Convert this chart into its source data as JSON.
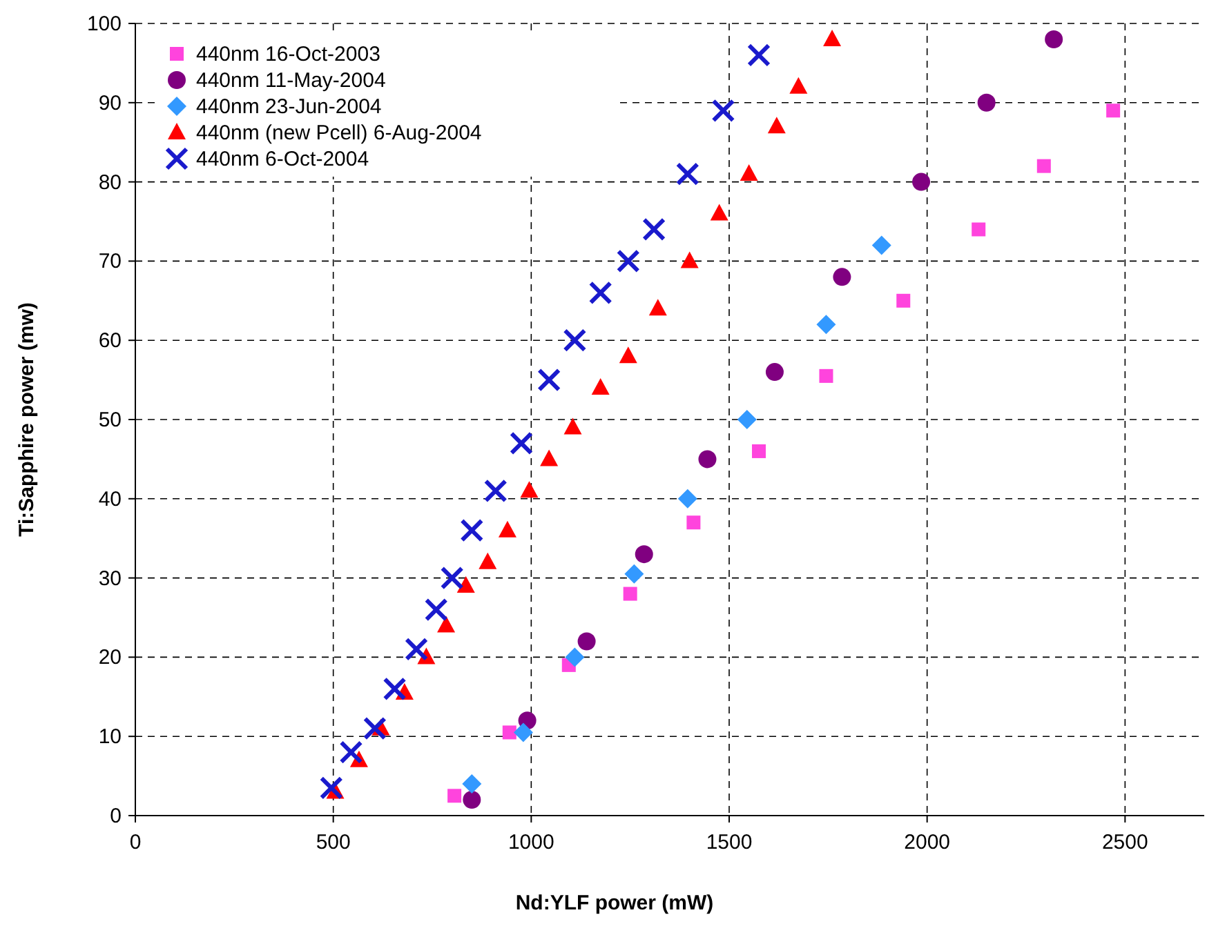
{
  "chart_data": {
    "type": "scatter",
    "xlabel": "Nd:YLF power (mW)",
    "ylabel": "Ti:Sapphire power (mw)",
    "xlim": [
      0,
      2700
    ],
    "ylim": [
      0,
      100
    ],
    "xticks": [
      0,
      500,
      1000,
      1500,
      2000,
      2500
    ],
    "yticks": [
      0,
      10,
      20,
      30,
      40,
      50,
      60,
      70,
      80,
      90,
      100
    ],
    "grid": true,
    "legend": "top left",
    "series": [
      {
        "name": "440nm 16-Oct-2003",
        "color": "#ff44dd",
        "marker": "square",
        "x": [
          806,
          945,
          1095,
          1250,
          1410,
          1575,
          1745,
          1940,
          2130,
          2295,
          2470
        ],
        "values": [
          2.5,
          10.5,
          19,
          28,
          37,
          46,
          55.5,
          65,
          74,
          82,
          89
        ]
      },
      {
        "name": "440nm 11-May-2004",
        "color": "#800080",
        "marker": "circle",
        "x": [
          850,
          990,
          1140,
          1285,
          1445,
          1615,
          1785,
          1985,
          2150,
          2320
        ],
        "values": [
          2,
          12,
          22,
          33,
          45,
          56,
          68,
          80,
          90,
          98
        ]
      },
      {
        "name": "440nm 23-Jun-2004",
        "color": "#3399ff",
        "marker": "diamond",
        "x": [
          850,
          980,
          1110,
          1260,
          1395,
          1545,
          1745,
          1885
        ],
        "values": [
          4,
          10.5,
          20,
          30.5,
          40,
          50,
          62,
          72
        ]
      },
      {
        "name": "440nm (new Pcell) 6-Aug-2004",
        "color": "#ff0000",
        "marker": "triangle",
        "x": [
          505,
          565,
          620,
          680,
          735,
          785,
          835,
          890,
          940,
          995,
          1045,
          1105,
          1175,
          1245,
          1320,
          1400,
          1475,
          1550,
          1620,
          1675,
          1760
        ],
        "values": [
          3,
          7,
          11,
          15.5,
          20,
          24,
          29,
          32,
          36,
          41,
          45,
          49,
          54,
          58,
          64,
          70,
          76,
          81,
          87,
          92,
          98
        ]
      },
      {
        "name": "440nm 6-Oct-2004",
        "color": "#1a1acc",
        "marker": "cross",
        "x": [
          495,
          545,
          605,
          655,
          710,
          760,
          800,
          850,
          910,
          975,
          1045,
          1110,
          1175,
          1245,
          1310,
          1395,
          1485,
          1575
        ],
        "values": [
          3.5,
          8,
          11,
          16,
          21,
          26,
          30,
          36,
          41,
          47,
          55,
          60,
          66,
          70,
          74,
          81,
          89,
          96
        ]
      }
    ]
  }
}
